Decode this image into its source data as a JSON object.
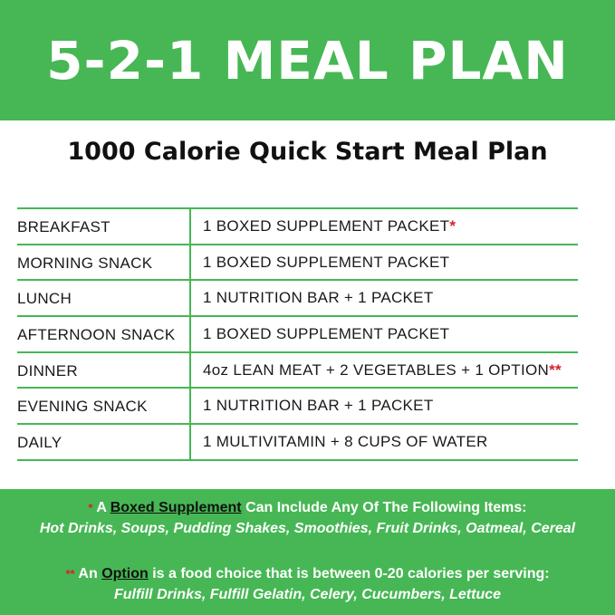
{
  "header": {
    "title": "5-2-1 MEAL PLAN"
  },
  "subtitle": "1000 Calorie Quick Start Meal Plan",
  "table": {
    "rows": [
      {
        "meal": "BREAKFAST",
        "item": "1 BOXED SUPPLEMENT PACKET",
        "mark": "*"
      },
      {
        "meal": "MORNING SNACK",
        "item": "1 BOXED SUPPLEMENT PACKET",
        "mark": ""
      },
      {
        "meal": "LUNCH",
        "item": "1 NUTRITION BAR + 1 PACKET",
        "mark": ""
      },
      {
        "meal": "AFTERNOON SNACK",
        "item": "1  BOXED SUPPLEMENT PACKET",
        "mark": ""
      },
      {
        "meal": "DINNER",
        "item": "4oz LEAN MEAT + 2 VEGETABLES + 1 OPTION",
        "mark": "**"
      },
      {
        "meal": "EVENING SNACK",
        "item": "1 NUTRITION BAR + 1 PACKET",
        "mark": ""
      },
      {
        "meal": "DAILY",
        "item": "1 MULTIVITAMIN +  8 CUPS OF WATER",
        "mark": ""
      }
    ]
  },
  "footer": {
    "note1": {
      "mark": "*",
      "pre": "A ",
      "term": "Boxed Supplement",
      "post": " Can Include Any Of The Following Items:",
      "items": "Hot Drinks, Soups, Pudding Shakes, Smoothies, Fruit Drinks, Oatmeal, Cereal"
    },
    "note2": {
      "mark": "**",
      "pre": "An ",
      "term": "Option",
      "post": " is a food choice that is between 0-20 calories per serving:",
      "items": "Fulfill Drinks, Fulfill Gelatin, Celery, Cucumbers, Lettuce"
    }
  },
  "colors": {
    "green": "#46b754",
    "asterisk": "#d3222a"
  }
}
